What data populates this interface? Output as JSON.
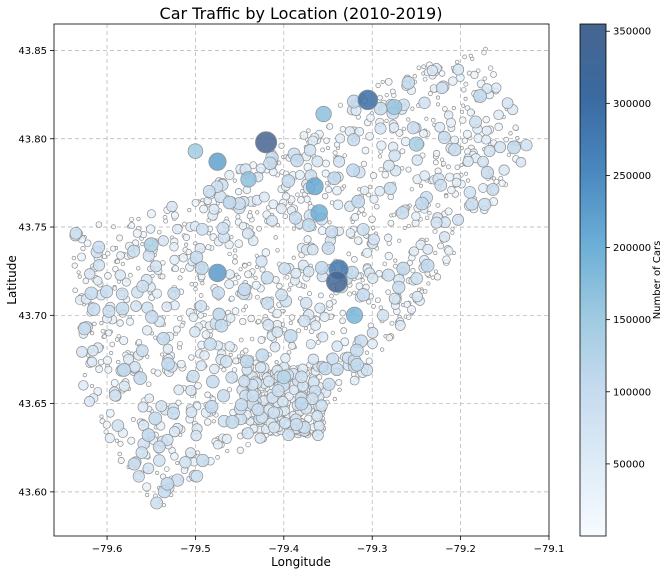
{
  "chart_data": {
    "type": "scatter",
    "title": "Car Traffic by Location (2010-2019)",
    "xlabel": "Longitude",
    "ylabel": "Latitude",
    "xlim": [
      -79.66,
      -79.1
    ],
    "ylim": [
      43.575,
      43.865
    ],
    "x_ticks": [
      -79.6,
      -79.5,
      -79.4,
      -79.3,
      -79.2,
      -79.1
    ],
    "x_tick_labels": [
      "−79.6",
      "−79.5",
      "−79.4",
      "−79.3",
      "−79.2",
      "−79.1"
    ],
    "y_ticks": [
      43.6,
      43.65,
      43.7,
      43.75,
      43.8,
      43.85
    ],
    "y_tick_labels": [
      "43.60",
      "43.65",
      "43.70",
      "43.75",
      "43.80",
      "43.85"
    ],
    "grid": true,
    "colorbar": {
      "label": "Number of Cars",
      "min": 0,
      "max": 355000,
      "ticks": [
        50000,
        100000,
        150000,
        200000,
        250000,
        300000,
        350000
      ],
      "tick_labels": [
        "50000",
        "100000",
        "150000",
        "200000",
        "250000",
        "300000",
        "350000"
      ],
      "colormap": [
        "#f7fbff",
        "#deebf7",
        "#c6dbef",
        "#9ecae1",
        "#6baed6",
        "#4a87bf",
        "#3a6aa0",
        "#466590"
      ]
    },
    "marker_edge_color": "#8f8f8f",
    "notable_points": [
      {
        "lon": -79.42,
        "lat": 43.798,
        "cars": 355000
      },
      {
        "lon": -79.34,
        "lat": 43.719,
        "cars": 345000
      },
      {
        "lon": -79.305,
        "lat": 43.822,
        "cars": 300000
      },
      {
        "lon": -79.338,
        "lat": 43.726,
        "cars": 280000
      },
      {
        "lon": -79.475,
        "lat": 43.724,
        "cars": 230000
      },
      {
        "lon": -79.475,
        "lat": 43.787,
        "cars": 220000
      },
      {
        "lon": -79.365,
        "lat": 43.773,
        "cars": 210000
      },
      {
        "lon": -79.36,
        "lat": 43.758,
        "cars": 200000
      },
      {
        "lon": -79.32,
        "lat": 43.7,
        "cars": 190000
      },
      {
        "lon": -79.44,
        "lat": 43.777,
        "cars": 170000
      },
      {
        "lon": -79.355,
        "lat": 43.814,
        "cars": 170000
      },
      {
        "lon": -79.275,
        "lat": 43.818,
        "cars": 160000
      },
      {
        "lon": -79.5,
        "lat": 43.793,
        "cars": 150000
      },
      {
        "lon": -79.25,
        "lat": 43.797,
        "cars": 140000
      },
      {
        "lon": -79.55,
        "lat": 43.74,
        "cars": 130000
      },
      {
        "lon": -79.4,
        "lat": 43.665,
        "cars": 120000
      },
      {
        "lon": -79.38,
        "lat": 43.65,
        "cars": 110000
      }
    ]
  }
}
